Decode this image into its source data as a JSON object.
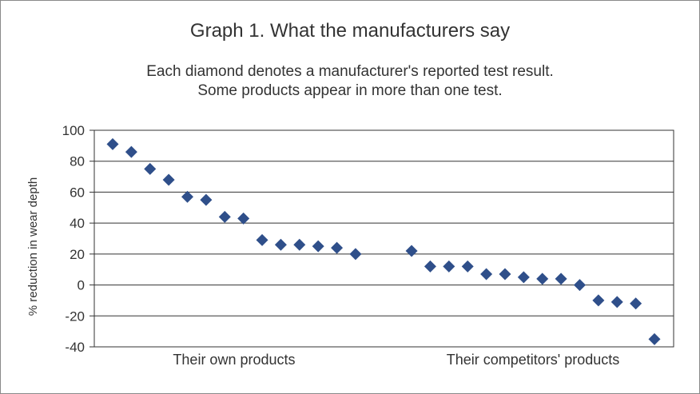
{
  "chart_data": {
    "type": "scatter",
    "title": "Graph 1. What the manufacturers say",
    "subtitle": [
      "Each diamond denotes a manufacturer's reported test result.",
      "Some products appear in more than one test."
    ],
    "xlabel": "",
    "ylabel": "% reduction in wear depth",
    "ylim": [
      -40,
      100
    ],
    "yticks": [
      100,
      80,
      60,
      40,
      20,
      0,
      -20,
      -40
    ],
    "grid": true,
    "marker": "diamond",
    "marker_color": "#2f4f8a",
    "categories": [
      "Their own products",
      "Their competitors' products"
    ],
    "series": [
      {
        "values": [
          91,
          86,
          75,
          68,
          57,
          55,
          44,
          43,
          29,
          26,
          26,
          25,
          24,
          20
        ]
      },
      {
        "values": [
          22,
          12,
          12,
          12,
          7,
          7,
          5,
          4,
          4,
          0,
          -10,
          -11,
          -12,
          -35
        ]
      }
    ]
  }
}
